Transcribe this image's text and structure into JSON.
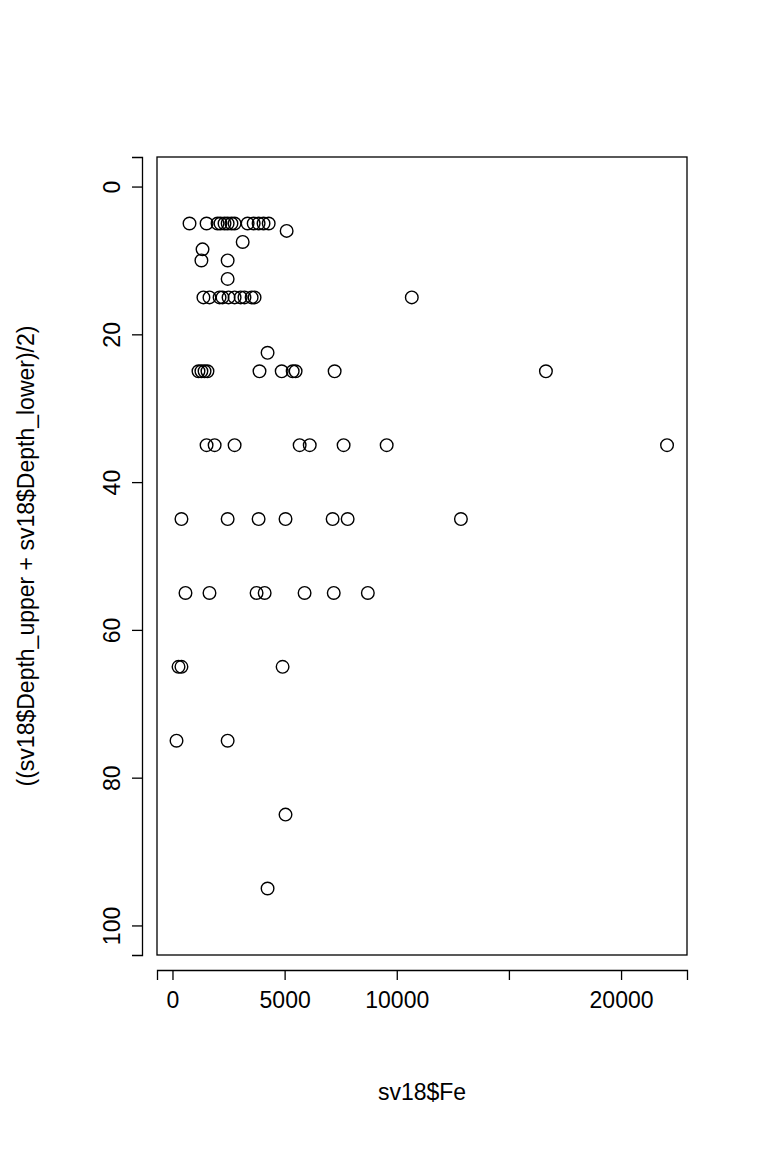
{
  "chart_data": {
    "type": "scatter",
    "x_label": "sv18$Fe",
    "y_label": "((sv18$Depth_upper + sv18$Depth_lower)/2)",
    "marker": "circle",
    "color": "#000000",
    "x": [
      760,
      1520,
      2010,
      2140,
      2320,
      2460,
      2630,
      2770,
      3350,
      3620,
      3840,
      4060,
      4290,
      5090,
      3130,
      1340,
      1290,
      2460,
      2460,
      1380,
      1650,
      2100,
      2230,
      2500,
      2770,
      3040,
      3210,
      3530,
      3660,
      10670,
      4240,
      1160,
      1290,
      1430,
      1560,
      3880,
      4870,
      5360,
      5490,
      7230,
      16650,
      1520,
      1880,
      2770,
      5670,
      6120,
      7630,
      9550,
      22050,
      400,
      2460,
      3840,
      5040,
      7140,
      7810,
      12860,
      580,
      1650,
      3750,
      4110,
      5890,
      7190,
      8710,
      270,
      400,
      4910,
      180,
      2460,
      5040,
      4240
    ],
    "values": [
      5,
      5,
      5,
      5,
      5,
      5,
      5,
      5,
      5,
      5,
      5,
      5,
      5,
      6,
      7.5,
      8.5,
      10,
      10,
      12.5,
      15,
      15,
      15,
      15,
      15,
      15,
      15,
      15,
      15,
      15,
      15,
      22.5,
      25,
      25,
      25,
      25,
      25,
      25,
      25,
      25,
      25,
      25,
      35,
      35,
      35,
      35,
      35,
      35,
      35,
      35,
      45,
      45,
      45,
      45,
      45,
      45,
      45,
      55,
      55,
      55,
      55,
      55,
      55,
      55,
      65,
      65,
      65,
      75,
      75,
      85,
      95
    ],
    "xlim": [
      -690,
      22940
    ],
    "xticks": [
      0,
      5000,
      10000,
      {
        "value": 15000,
        "label": null
      },
      20000
    ],
    "ylim": [
      104,
      -4
    ],
    "yticks": [
      0,
      20,
      40,
      60,
      80,
      100
    ],
    "grid": false
  }
}
